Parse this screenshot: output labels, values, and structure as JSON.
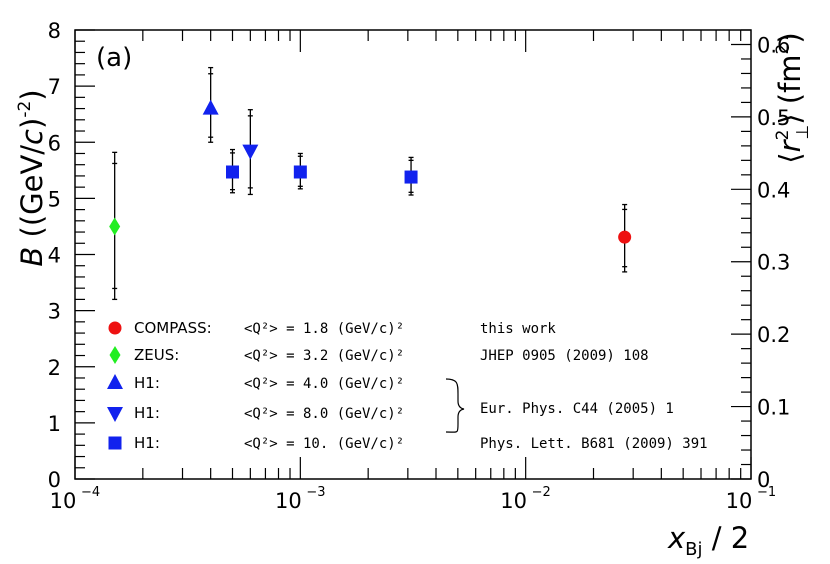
{
  "chart_data": {
    "type": "scatter",
    "panel_label": "(a)",
    "x_scale": "log",
    "xlim": [
      0.0001,
      0.1
    ],
    "ylim": [
      0,
      8
    ],
    "y2lim": [
      0,
      0.62
    ],
    "x_tick_labels": [
      {
        "base": "10",
        "exp": "−4",
        "value": 0.0001
      },
      {
        "base": "10",
        "exp": "−3",
        "value": 0.001
      },
      {
        "base": "10",
        "exp": "−2",
        "value": 0.01
      },
      {
        "base": "10",
        "exp": "−1",
        "value": 0.1
      }
    ],
    "y_ticks": [
      "0",
      "1",
      "2",
      "3",
      "4",
      "5",
      "6",
      "7",
      "8"
    ],
    "y2_ticks": [
      "0",
      "0.1",
      "0.2",
      "0.3",
      "0.4",
      "0.5",
      "0.6"
    ],
    "xlabel": {
      "italic": "x",
      "sub": "Bj",
      "rest": " / 2"
    },
    "ylabel": {
      "italic": "B",
      "rest": " ((GeV/",
      "italic2": "c",
      "rest2": ")",
      "sup": "-2",
      "close": ")"
    },
    "y2label": {
      "open": "⟨",
      "italic": "r",
      "sup": "2",
      "sub": "⊥",
      "close": "⟩ (fm",
      "sup2": "2",
      "end": ")"
    },
    "grid": false,
    "legend_position": "bottom-left",
    "series": [
      {
        "name": "COMPASS:",
        "q2": "<Q²> = 1.8 (GeV/c)²",
        "ref": "this work",
        "marker": "circle",
        "color": "#ee1111",
        "points": [
          {
            "x": 0.0275,
            "y": 4.31,
            "err_lo": 0.62,
            "err_hi": 0.58
          }
        ]
      },
      {
        "name": "ZEUS:",
        "q2": "<Q²> = 3.2 (GeV/c)²",
        "ref": "JHEP 0905 (2009) 108",
        "marker": "diamond",
        "color": "#22ee22",
        "points": [
          {
            "x": 0.00015,
            "y": 4.5,
            "err_lo": 1.3,
            "err_hi": 1.32
          }
        ]
      },
      {
        "name": "H1:",
        "q2": "<Q²> = 4.0 (GeV/c)²",
        "ref": "Eur. Phys. C44 (2005) 1",
        "marker": "triangle-up",
        "color": "#1122ee",
        "points": [
          {
            "x": 0.0004,
            "y": 6.6,
            "err_lo": 0.6,
            "err_hi": 0.73
          }
        ]
      },
      {
        "name": "H1:",
        "q2": "<Q²> = 8.0 (GeV/c)²",
        "ref": "",
        "marker": "triangle-down",
        "color": "#1122ee",
        "points": [
          {
            "x": 0.0006,
            "y": 5.85,
            "err_lo": 0.78,
            "err_hi": 0.73
          }
        ]
      },
      {
        "name": "H1:",
        "q2": "<Q²> = 10. (GeV/c)²",
        "ref": "Phys. Lett. B681 (2009) 391",
        "marker": "square",
        "color": "#1122ee",
        "points": [
          {
            "x": 0.0005,
            "y": 5.47,
            "err_lo": 0.37,
            "err_hi": 0.4
          },
          {
            "x": 0.001,
            "y": 5.47,
            "err_lo": 0.3,
            "err_hi": 0.33
          },
          {
            "x": 0.0031,
            "y": 5.38,
            "err_lo": 0.32,
            "err_hi": 0.35
          }
        ]
      }
    ]
  }
}
